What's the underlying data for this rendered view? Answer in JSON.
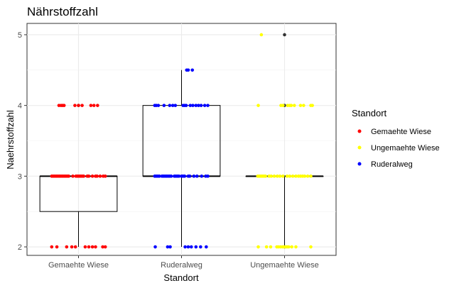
{
  "chart_data": {
    "type": "scatter",
    "title": "Nährstoffzahl",
    "xlabel": "Standort",
    "ylabel": "Naehrstoffzahl",
    "categories": [
      "Gemaehte Wiese",
      "Ruderalweg",
      "Ungemaehte Wiese"
    ],
    "ylim": [
      1.88,
      5.16
    ],
    "yticks": [
      2,
      3,
      4,
      5
    ],
    "grid": true,
    "legend": {
      "title": "Standort",
      "position": "right",
      "entries": [
        {
          "label": "Gemaehte Wiese",
          "color": "#ff0000"
        },
        {
          "label": "Ungemaehte Wiese",
          "color": "#ffff00"
        },
        {
          "label": "Ruderalweg",
          "color": "#0000ff"
        }
      ]
    },
    "boxplots": [
      {
        "category": "Gemaehte Wiese",
        "min": 2,
        "q1": 2.5,
        "median": 3,
        "q3": 3,
        "max": 3,
        "outliers": [
          4
        ]
      },
      {
        "category": "Ruderalweg",
        "min": 2,
        "q1": 3,
        "median": 3,
        "q3": 4,
        "max": 4.5,
        "outliers": []
      },
      {
        "category": "Ungemaehte Wiese",
        "min": 2,
        "q1": 3,
        "median": 3,
        "q3": 3,
        "max": 3,
        "outliers": [
          2,
          4,
          5
        ]
      }
    ],
    "series": [
      {
        "name": "Gemaehte Wiese",
        "color": "#ff0000",
        "points": [
          {
            "x": -0.38,
            "y": 4
          },
          {
            "x": -0.34,
            "y": 4
          },
          {
            "x": -0.31,
            "y": 4
          },
          {
            "x": -0.28,
            "y": 4
          },
          {
            "x": -0.07,
            "y": 4
          },
          {
            "x": 0.0,
            "y": 4
          },
          {
            "x": 0.07,
            "y": 4
          },
          {
            "x": 0.24,
            "y": 4
          },
          {
            "x": 0.3,
            "y": 4
          },
          {
            "x": 0.37,
            "y": 4
          },
          {
            "x": -0.52,
            "y": 3
          },
          {
            "x": -0.49,
            "y": 3
          },
          {
            "x": -0.46,
            "y": 3
          },
          {
            "x": -0.43,
            "y": 3
          },
          {
            "x": -0.4,
            "y": 3
          },
          {
            "x": -0.37,
            "y": 3
          },
          {
            "x": -0.34,
            "y": 3
          },
          {
            "x": -0.31,
            "y": 3
          },
          {
            "x": -0.28,
            "y": 3
          },
          {
            "x": -0.25,
            "y": 3
          },
          {
            "x": -0.22,
            "y": 3
          },
          {
            "x": -0.19,
            "y": 3
          },
          {
            "x": -0.11,
            "y": 3
          },
          {
            "x": -0.05,
            "y": 3
          },
          {
            "x": -0.02,
            "y": 3
          },
          {
            "x": 0.01,
            "y": 3
          },
          {
            "x": 0.04,
            "y": 3
          },
          {
            "x": 0.07,
            "y": 3
          },
          {
            "x": 0.1,
            "y": 3
          },
          {
            "x": 0.17,
            "y": 3
          },
          {
            "x": 0.2,
            "y": 3
          },
          {
            "x": 0.27,
            "y": 3
          },
          {
            "x": 0.33,
            "y": 3
          },
          {
            "x": 0.36,
            "y": 3
          },
          {
            "x": 0.42,
            "y": 3
          },
          {
            "x": 0.48,
            "y": 3
          },
          {
            "x": 0.52,
            "y": 3
          },
          {
            "x": -0.52,
            "y": 2
          },
          {
            "x": -0.42,
            "y": 2
          },
          {
            "x": -0.23,
            "y": 2
          },
          {
            "x": -0.13,
            "y": 2
          },
          {
            "x": -0.06,
            "y": 2
          },
          {
            "x": 0.13,
            "y": 2
          },
          {
            "x": 0.2,
            "y": 2
          },
          {
            "x": 0.27,
            "y": 2
          },
          {
            "x": 0.33,
            "y": 2
          },
          {
            "x": 0.47,
            "y": 2
          },
          {
            "x": 0.52,
            "y": 2
          }
        ]
      },
      {
        "name": "Ruderalweg",
        "color": "#0000ff",
        "points": [
          {
            "x": 0.1,
            "y": 4.5
          },
          {
            "x": 0.13,
            "y": 4.5
          },
          {
            "x": 0.21,
            "y": 4.5
          },
          {
            "x": -0.52,
            "y": 4
          },
          {
            "x": -0.49,
            "y": 4
          },
          {
            "x": -0.45,
            "y": 4
          },
          {
            "x": -0.34,
            "y": 4
          },
          {
            "x": -0.23,
            "y": 4
          },
          {
            "x": -0.17,
            "y": 4
          },
          {
            "x": -0.12,
            "y": 4
          },
          {
            "x": 0.03,
            "y": 4
          },
          {
            "x": 0.06,
            "y": 4
          },
          {
            "x": 0.09,
            "y": 4
          },
          {
            "x": 0.17,
            "y": 4
          },
          {
            "x": 0.22,
            "y": 4
          },
          {
            "x": 0.28,
            "y": 4
          },
          {
            "x": 0.33,
            "y": 4
          },
          {
            "x": 0.38,
            "y": 4
          },
          {
            "x": 0.45,
            "y": 4
          },
          {
            "x": 0.51,
            "y": 4
          },
          {
            "x": -0.52,
            "y": 3
          },
          {
            "x": -0.49,
            "y": 3
          },
          {
            "x": -0.46,
            "y": 3
          },
          {
            "x": -0.43,
            "y": 3
          },
          {
            "x": -0.38,
            "y": 3
          },
          {
            "x": -0.35,
            "y": 3
          },
          {
            "x": -0.32,
            "y": 3
          },
          {
            "x": -0.29,
            "y": 3
          },
          {
            "x": -0.26,
            "y": 3
          },
          {
            "x": -0.23,
            "y": 3
          },
          {
            "x": -0.2,
            "y": 3
          },
          {
            "x": -0.14,
            "y": 3
          },
          {
            "x": -0.11,
            "y": 3
          },
          {
            "x": -0.08,
            "y": 3
          },
          {
            "x": -0.05,
            "y": 3
          },
          {
            "x": 0.0,
            "y": 3
          },
          {
            "x": 0.03,
            "y": 3
          },
          {
            "x": 0.06,
            "y": 3
          },
          {
            "x": 0.13,
            "y": 3
          },
          {
            "x": 0.16,
            "y": 3
          },
          {
            "x": 0.24,
            "y": 3
          },
          {
            "x": 0.3,
            "y": 3
          },
          {
            "x": 0.39,
            "y": 3
          },
          {
            "x": 0.47,
            "y": 3
          },
          {
            "x": 0.51,
            "y": 3
          },
          {
            "x": -0.51,
            "y": 2
          },
          {
            "x": -0.27,
            "y": 2
          },
          {
            "x": -0.22,
            "y": 2
          },
          {
            "x": 0.07,
            "y": 2
          },
          {
            "x": 0.13,
            "y": 2
          },
          {
            "x": 0.19,
            "y": 2
          },
          {
            "x": 0.28,
            "y": 2
          },
          {
            "x": 0.37,
            "y": 2
          },
          {
            "x": 0.48,
            "y": 2
          }
        ]
      },
      {
        "name": "Ungemaehte Wiese",
        "color": "#ffff00",
        "points": [
          {
            "x": -0.45,
            "y": 5
          },
          {
            "x": -0.51,
            "y": 4
          },
          {
            "x": -0.07,
            "y": 4
          },
          {
            "x": -0.03,
            "y": 4
          },
          {
            "x": 0.06,
            "y": 4
          },
          {
            "x": 0.1,
            "y": 4
          },
          {
            "x": 0.13,
            "y": 4
          },
          {
            "x": 0.19,
            "y": 4
          },
          {
            "x": 0.31,
            "y": 4
          },
          {
            "x": 0.37,
            "y": 4
          },
          {
            "x": 0.51,
            "y": 4
          },
          {
            "x": 0.54,
            "y": 4
          },
          {
            "x": -0.52,
            "y": 3
          },
          {
            "x": -0.49,
            "y": 3
          },
          {
            "x": -0.46,
            "y": 3
          },
          {
            "x": -0.43,
            "y": 3
          },
          {
            "x": -0.4,
            "y": 3
          },
          {
            "x": -0.37,
            "y": 3
          },
          {
            "x": -0.3,
            "y": 3
          },
          {
            "x": -0.26,
            "y": 3
          },
          {
            "x": -0.2,
            "y": 3
          },
          {
            "x": -0.14,
            "y": 3
          },
          {
            "x": -0.09,
            "y": 3
          },
          {
            "x": -0.03,
            "y": 3
          },
          {
            "x": 0.05,
            "y": 3
          },
          {
            "x": 0.1,
            "y": 3
          },
          {
            "x": 0.16,
            "y": 3
          },
          {
            "x": 0.22,
            "y": 3
          },
          {
            "x": 0.27,
            "y": 3
          },
          {
            "x": 0.31,
            "y": 3
          },
          {
            "x": 0.35,
            "y": 3
          },
          {
            "x": 0.39,
            "y": 3
          },
          {
            "x": 0.45,
            "y": 3
          },
          {
            "x": 0.51,
            "y": 3
          },
          {
            "x": -0.51,
            "y": 2
          },
          {
            "x": -0.35,
            "y": 2
          },
          {
            "x": -0.27,
            "y": 2
          },
          {
            "x": -0.15,
            "y": 2
          },
          {
            "x": -0.12,
            "y": 2
          },
          {
            "x": -0.08,
            "y": 2
          },
          {
            "x": -0.04,
            "y": 2
          },
          {
            "x": -0.01,
            "y": 2
          },
          {
            "x": 0.02,
            "y": 2
          },
          {
            "x": 0.05,
            "y": 2
          },
          {
            "x": 0.08,
            "y": 2
          },
          {
            "x": 0.14,
            "y": 2
          },
          {
            "x": 0.22,
            "y": 2
          },
          {
            "x": 0.51,
            "y": 2
          }
        ]
      }
    ]
  }
}
